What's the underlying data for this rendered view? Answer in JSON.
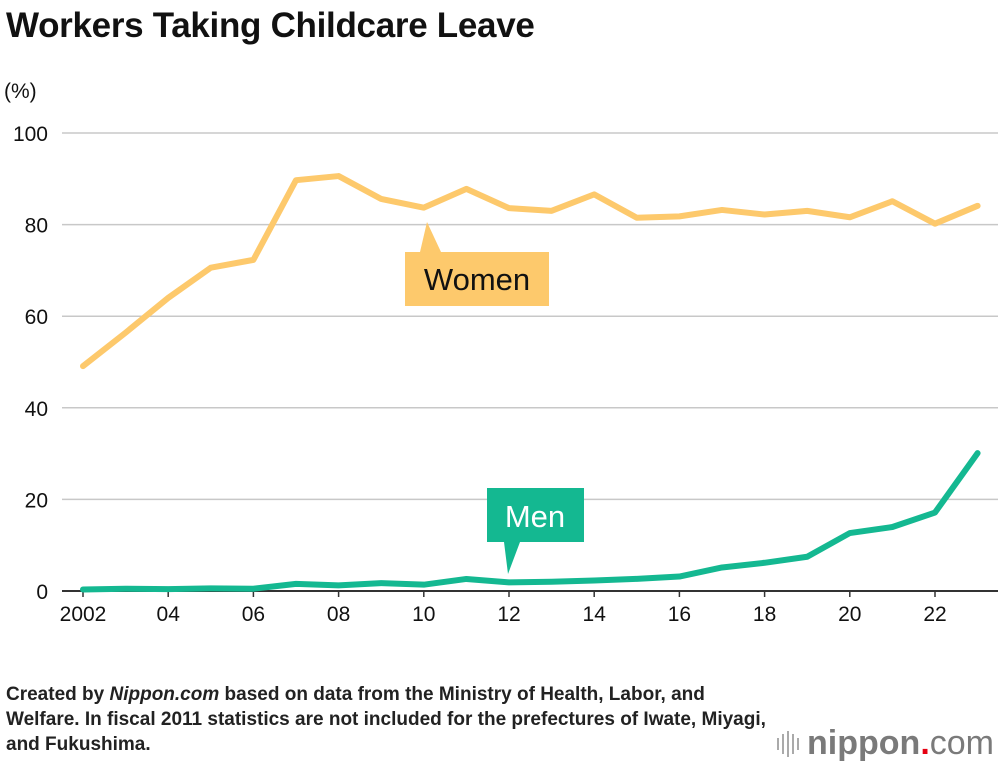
{
  "chart_data": {
    "type": "line",
    "title": "Workers Taking Childcare Leave",
    "ylabel": "(%)",
    "xlabel": "",
    "ylim": [
      0,
      100
    ],
    "yticks": [
      0,
      20,
      40,
      60,
      80,
      100
    ],
    "grid": true,
    "x": [
      2002,
      2003,
      2004,
      2005,
      2006,
      2007,
      2008,
      2009,
      2010,
      2011,
      2012,
      2013,
      2014,
      2015,
      2016,
      2017,
      2018,
      2019,
      2020,
      2021,
      2022,
      2023
    ],
    "xtick_labels": [
      {
        "x": 2002,
        "label": "2002"
      },
      {
        "x": 2004,
        "label": "04"
      },
      {
        "x": 2006,
        "label": "06"
      },
      {
        "x": 2008,
        "label": "08"
      },
      {
        "x": 2010,
        "label": "10"
      },
      {
        "x": 2012,
        "label": "12"
      },
      {
        "x": 2014,
        "label": "14"
      },
      {
        "x": 2016,
        "label": "16"
      },
      {
        "x": 2018,
        "label": "18"
      },
      {
        "x": 2020,
        "label": "20"
      },
      {
        "x": 2022,
        "label": "22"
      }
    ],
    "series": [
      {
        "name": "Women",
        "color": "#fdc96c",
        "values": [
          49.1,
          56.4,
          64.0,
          70.6,
          72.3,
          89.7,
          90.6,
          85.6,
          83.7,
          87.8,
          83.6,
          83.0,
          86.6,
          81.5,
          81.8,
          83.2,
          82.2,
          83.0,
          81.6,
          85.1,
          80.2,
          84.1
        ]
      },
      {
        "name": "Men",
        "color": "#14b891",
        "values": [
          0.33,
          0.5,
          0.42,
          0.56,
          0.5,
          1.56,
          1.23,
          1.72,
          1.38,
          2.63,
          1.89,
          2.03,
          2.3,
          2.65,
          3.16,
          5.14,
          6.16,
          7.48,
          12.65,
          13.97,
          17.13,
          30.1
        ]
      }
    ]
  },
  "footer": {
    "prefix": "Created by ",
    "source_name": "Nippon.com",
    "suffix": " based on data from the Ministry of Health, Labor, and Welfare. In fiscal 2011 statistics are not included for the prefectures of Iwate, Miyagi, and Fukushima."
  },
  "logo": {
    "name": "nippon",
    "dot": ".",
    "tld": "com"
  }
}
